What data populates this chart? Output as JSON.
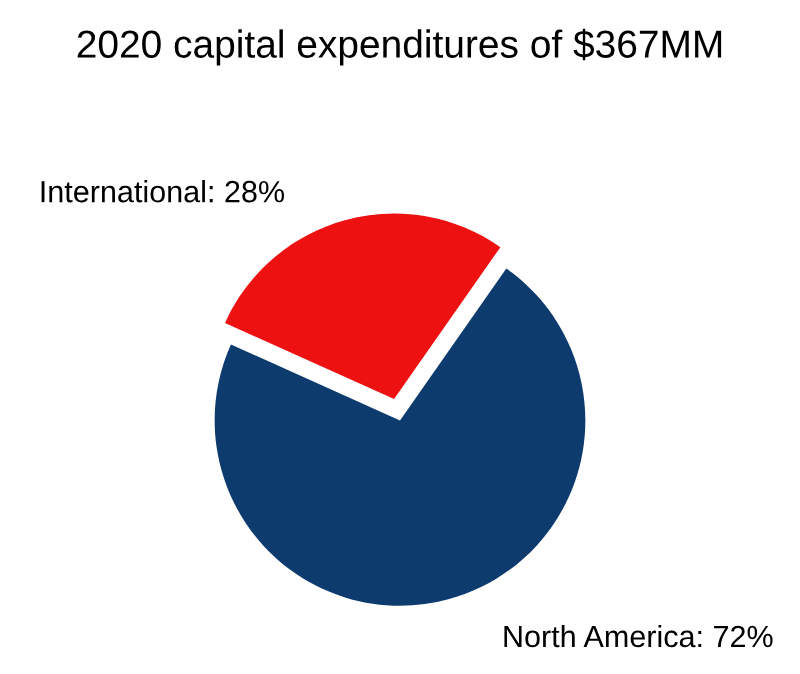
{
  "chart_data": {
    "type": "pie",
    "title": "2020 capital expenditures of $367MM",
    "categories": [
      "International",
      "North America"
    ],
    "values": [
      28,
      72
    ],
    "value_labels": [
      "28%",
      "72%"
    ],
    "colors": [
      "#ee1111",
      "#0d3b6e"
    ]
  }
}
